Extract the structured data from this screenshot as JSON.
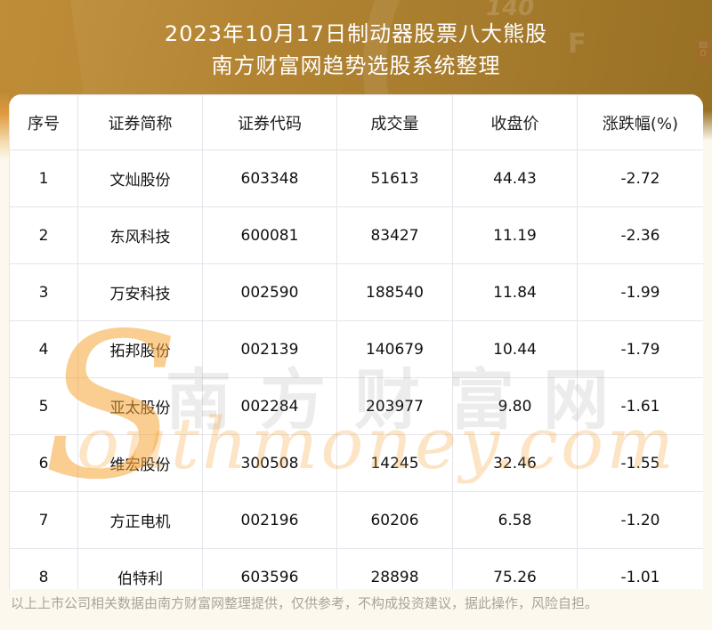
{
  "header": {
    "title_line1": "2023年10月17日制动器股票八大熊股",
    "title_line2": "南方财富网趋势选股系统整理",
    "art": {
      "gauge_letter": "F",
      "gauge_pump_icon": "⛽",
      "dial_number": "140"
    }
  },
  "chart_data": {
    "type": "table",
    "title": "2023年10月17日制动器股票八大熊股",
    "subtitle": "南方财富网趋势选股系统整理",
    "columns": [
      "序号",
      "证券简称",
      "证券代码",
      "成交量",
      "收盘价",
      "涨跌幅(%)"
    ],
    "rows": [
      [
        "1",
        "文灿股份",
        "603348",
        "51613",
        "44.43",
        "-2.72"
      ],
      [
        "2",
        "东风科技",
        "600081",
        "83427",
        "11.19",
        "-2.36"
      ],
      [
        "3",
        "万安科技",
        "002590",
        "188540",
        "11.84",
        "-1.99"
      ],
      [
        "4",
        "拓邦股份",
        "002139",
        "140679",
        "10.44",
        "-1.79"
      ],
      [
        "5",
        "亚太股份",
        "002284",
        "203977",
        "9.80",
        "-1.61"
      ],
      [
        "6",
        "维宏股份",
        "300508",
        "14245",
        "32.46",
        "-1.55"
      ],
      [
        "7",
        "方正电机",
        "002196",
        "60206",
        "6.58",
        "-1.20"
      ],
      [
        "8",
        "伯特利",
        "603596",
        "28898",
        "75.26",
        "-1.01"
      ]
    ]
  },
  "watermark": {
    "big_letter": "S",
    "script_text": "outhmoney.com",
    "gray_text": "南方财富网"
  },
  "footer": {
    "note": "以上上市公司相关数据由南方财富网整理提供，仅供参考，不构成投资建议，据此操作，风险自担。"
  },
  "colors": {
    "header_gold_left": "#bf8d37",
    "header_gold_right": "#926c21",
    "page_cream": "#fdf8ee",
    "table_background": "#ffffff",
    "table_border": "#e4e4ec",
    "title_text": "#ffffff",
    "cell_text": "#111111",
    "watermark_orange": "#f6a635",
    "footer_text": "#a8a49c"
  }
}
